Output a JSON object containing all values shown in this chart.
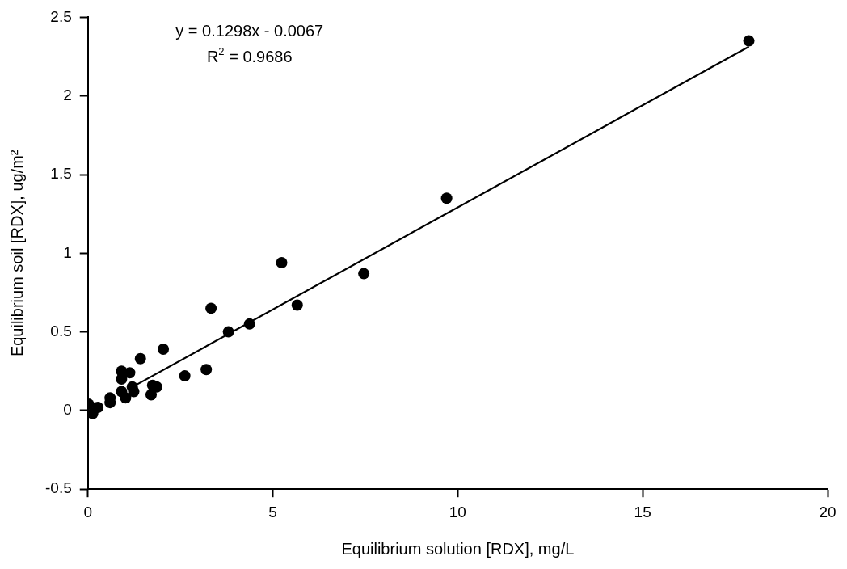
{
  "chart_data": {
    "type": "scatter",
    "xlabel": "Equilibrium solution [RDX], mg/L",
    "ylabel": "Equilibrium soil [RDX], ug/m²",
    "annotations": [
      "y = 0.1298x - 0.0067",
      "R$^{2}$ = 0.9686"
    ],
    "xlim": [
      0,
      20
    ],
    "xticks": [
      0,
      5,
      10,
      15,
      20
    ],
    "ylim": [
      -0.5,
      2.5
    ],
    "yticks": [
      -0.5,
      0,
      0.5,
      1,
      1.5,
      2,
      2.5
    ],
    "grid": false,
    "legend": false,
    "marker": "circle",
    "series": [
      {
        "color": "#000000",
        "x": [
          17.87,
          9.7,
          7.46,
          5.24,
          5.66,
          3.33,
          4.37,
          3.8,
          2.04,
          1.42,
          3.2,
          2.62,
          0.91,
          1.13,
          0.91,
          1.75,
          1.86,
          1.71,
          1.2,
          1.24,
          1.02,
          0.91,
          0.6,
          0.6,
          0.27,
          0.02,
          0.13
        ],
        "values": [
          2.35,
          1.35,
          0.87,
          0.94,
          0.67,
          0.65,
          0.55,
          0.5,
          0.39,
          0.33,
          0.26,
          0.22,
          0.25,
          0.24,
          0.2,
          0.16,
          0.15,
          0.1,
          0.15,
          0.12,
          0.08,
          0.12,
          0.08,
          0.05,
          0.02,
          0.04,
          -0.02
        ]
      },
      {
        "type": "line",
        "color": "#000000",
        "marker": "none",
        "line_style": "solid",
        "x": [
          1.3,
          17.87
        ],
        "values": [
          0.162,
          2.313
        ]
      }
    ]
  }
}
